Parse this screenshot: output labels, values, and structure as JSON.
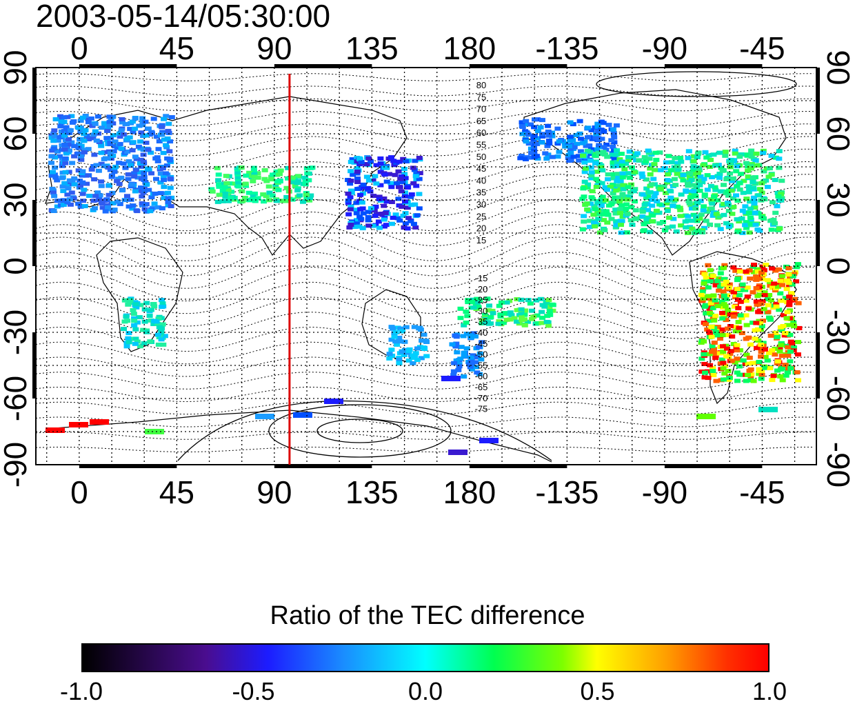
{
  "title": "2003-05-14/05:30:00",
  "map": {
    "top_lon_labels": [
      "0",
      "45",
      "90",
      "135",
      "180",
      "-135",
      "-90",
      "-45"
    ],
    "bottom_lon_labels": [
      "0",
      "45",
      "90",
      "135",
      "180",
      "-135",
      "-90",
      "-45"
    ],
    "left_lat_labels": [
      "90",
      "60",
      "30",
      "0",
      "-30",
      "-60",
      "-90"
    ],
    "right_lat_labels": [
      "90",
      "60",
      "30",
      "0",
      "-30",
      "-60",
      "-90"
    ],
    "marker_longitude": 97,
    "marker_color": "#dd0000",
    "north_contour_labels": [
      "80",
      "75",
      "70",
      "65",
      "60",
      "55",
      "50",
      "45",
      "40",
      "35",
      "30",
      "25",
      "20",
      "15"
    ],
    "south_contour_labels": [
      "-15",
      "-20",
      "-25",
      "-30",
      "-35",
      "-40",
      "-45",
      "-50",
      "-55",
      "-60",
      "-65",
      "-70",
      "-75"
    ]
  },
  "colorbar": {
    "title": "Ratio of the TEC difference",
    "tick_labels": [
      "-1.0",
      "-0.5",
      "0.0",
      "0.5",
      "1.0"
    ],
    "range": [
      -1.0,
      1.0
    ]
  }
}
